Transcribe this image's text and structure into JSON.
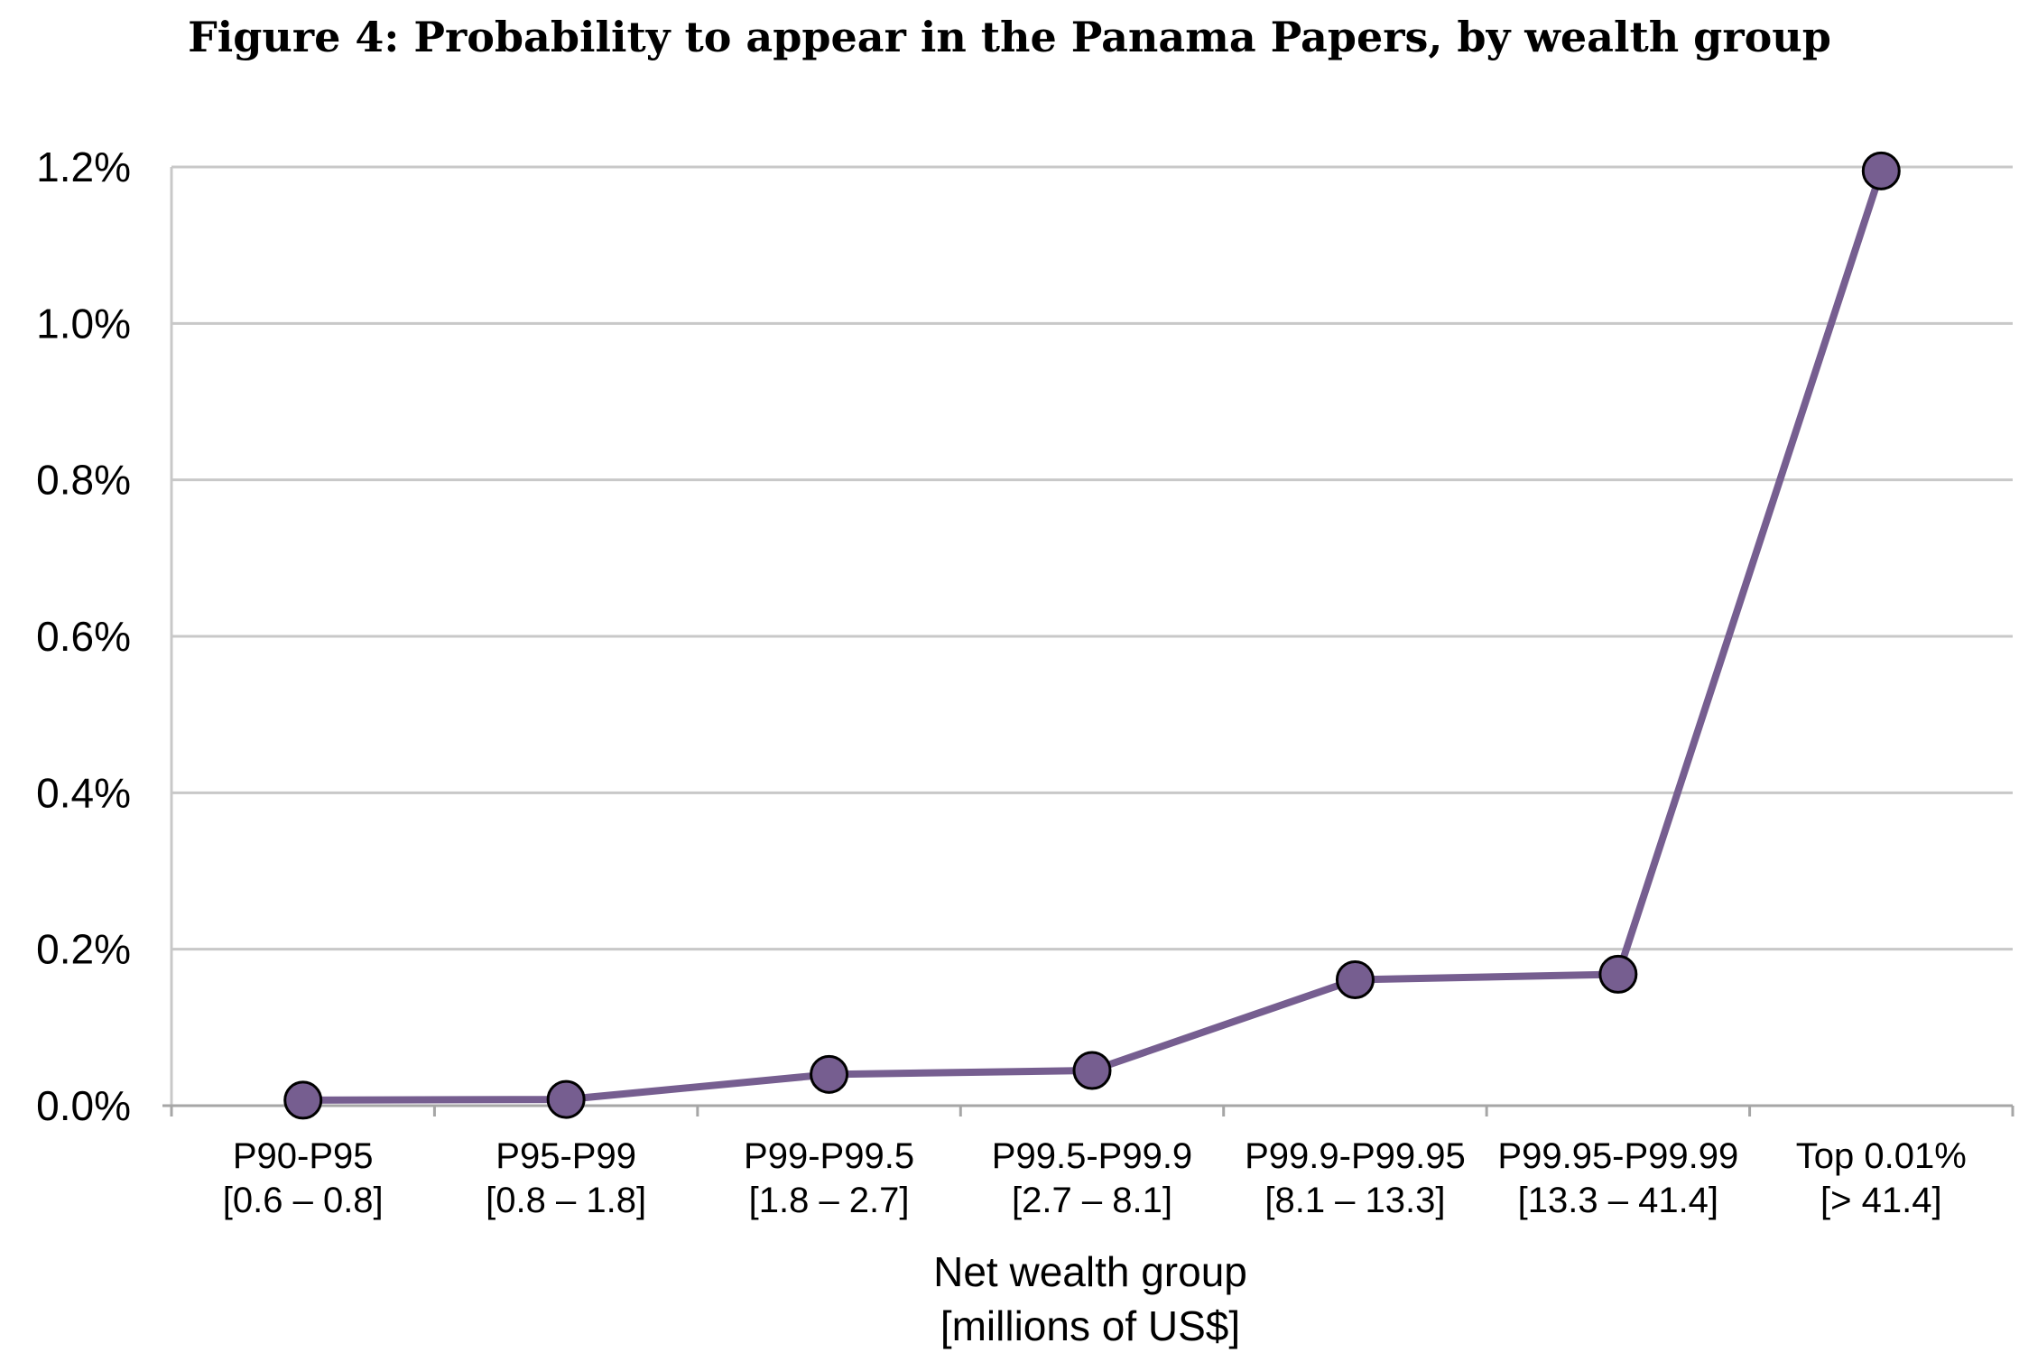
{
  "figure": {
    "title": "Figure 4: Probability to appear in the Panama Papers, by wealth group"
  },
  "colors": {
    "series": "#765e90",
    "marker_stroke": "#000000",
    "grid": "#c8c8c8",
    "axis": "#a6a6a6"
  },
  "chart_data": {
    "type": "line",
    "title": "",
    "xlabel": [
      "Net wealth group",
      "[millions of US$]"
    ],
    "ylabel": "",
    "ylim": [
      0.0,
      1.2
    ],
    "y_ticks": [
      "0.0%",
      "0.2%",
      "0.4%",
      "0.6%",
      "0.8%",
      "1.0%",
      "1.2%"
    ],
    "y_tick_values": [
      0.0,
      0.2,
      0.4,
      0.6,
      0.8,
      1.0,
      1.2
    ],
    "grid": true,
    "legend": "none",
    "categories": [
      {
        "group": "P90-P95",
        "range": "[0.6 – 0.8]"
      },
      {
        "group": "P95-P99",
        "range": "[0.8 – 1.8]"
      },
      {
        "group": "P99-P99.5",
        "range": "[1.8 – 2.7]"
      },
      {
        "group": "P99.5-P99.9",
        "range": "[2.7 – 8.1]"
      },
      {
        "group": "P99.9-P99.95",
        "range": "[8.1 – 13.3]"
      },
      {
        "group": "P99.95-P99.99",
        "range": "[13.3 – 41.4]"
      },
      {
        "group": "Top 0.01%",
        "range": "[> 41.4]"
      }
    ],
    "series": [
      {
        "values": [
          0.007,
          0.008,
          0.04,
          0.045,
          0.161,
          0.168,
          1.195
        ]
      }
    ]
  }
}
